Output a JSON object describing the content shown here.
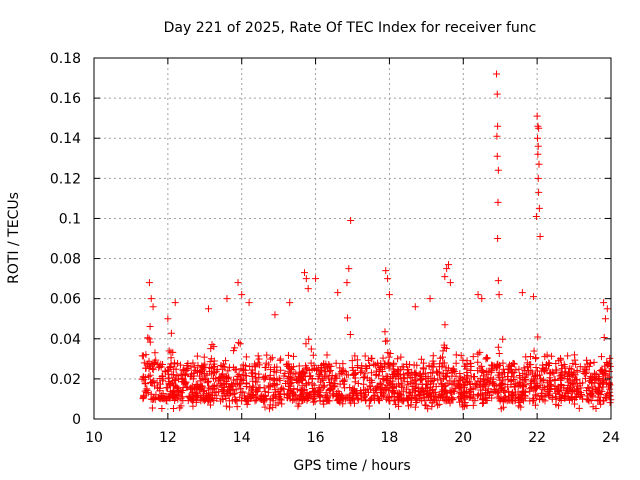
{
  "chart_data": {
    "type": "scatter",
    "title": "Day 221 of 2025, Rate Of TEC Index for receiver func",
    "xlabel": "GPS time / hours",
    "ylabel": "ROTI / TECUs",
    "xlim": [
      10,
      24
    ],
    "ylim": [
      0,
      0.18
    ],
    "x_ticks": [
      10,
      12,
      14,
      16,
      18,
      20,
      22,
      24
    ],
    "x_tick_labels": [
      "10",
      "12",
      "14",
      "16",
      "18",
      "20",
      "22",
      "24"
    ],
    "y_ticks": [
      0,
      0.02,
      0.04,
      0.06,
      0.08,
      0.1,
      0.12,
      0.14,
      0.16,
      0.18
    ],
    "y_tick_labels": [
      "0",
      "0.02",
      "0.04",
      "0.06",
      "0.08",
      "0.1",
      "0.12",
      "0.14",
      "0.16",
      "0.18"
    ],
    "grid": true,
    "marker": "+",
    "color": "#ff0000",
    "series": [
      {
        "name": "ROTI",
        "dense_band": {
          "x_start": 11.3,
          "x_end": 24.0,
          "y_min": 0.005,
          "y_typical_max": 0.04,
          "y_median": 0.016
        },
        "points": [
          {
            "x": 11.5,
            "y": 0.068
          },
          {
            "x": 11.55,
            "y": 0.06
          },
          {
            "x": 11.6,
            "y": 0.056
          },
          {
            "x": 12.0,
            "y": 0.05
          },
          {
            "x": 12.2,
            "y": 0.058
          },
          {
            "x": 13.1,
            "y": 0.055
          },
          {
            "x": 13.6,
            "y": 0.06
          },
          {
            "x": 13.9,
            "y": 0.068
          },
          {
            "x": 14.0,
            "y": 0.062
          },
          {
            "x": 14.2,
            "y": 0.058
          },
          {
            "x": 14.9,
            "y": 0.052
          },
          {
            "x": 15.3,
            "y": 0.058
          },
          {
            "x": 15.7,
            "y": 0.073
          },
          {
            "x": 15.75,
            "y": 0.07
          },
          {
            "x": 15.8,
            "y": 0.065
          },
          {
            "x": 16.0,
            "y": 0.07
          },
          {
            "x": 16.6,
            "y": 0.063
          },
          {
            "x": 16.9,
            "y": 0.075
          },
          {
            "x": 16.95,
            "y": 0.099
          },
          {
            "x": 16.85,
            "y": 0.068
          },
          {
            "x": 17.9,
            "y": 0.074
          },
          {
            "x": 17.95,
            "y": 0.07
          },
          {
            "x": 18.0,
            "y": 0.062
          },
          {
            "x": 18.7,
            "y": 0.056
          },
          {
            "x": 19.1,
            "y": 0.06
          },
          {
            "x": 19.5,
            "y": 0.071
          },
          {
            "x": 19.55,
            "y": 0.075
          },
          {
            "x": 19.6,
            "y": 0.077
          },
          {
            "x": 19.65,
            "y": 0.068
          },
          {
            "x": 20.4,
            "y": 0.062
          },
          {
            "x": 20.5,
            "y": 0.06
          },
          {
            "x": 20.9,
            "y": 0.172
          },
          {
            "x": 20.92,
            "y": 0.162
          },
          {
            "x": 20.93,
            "y": 0.146
          },
          {
            "x": 20.91,
            "y": 0.141
          },
          {
            "x": 20.92,
            "y": 0.131
          },
          {
            "x": 20.95,
            "y": 0.124
          },
          {
            "x": 20.94,
            "y": 0.108
          },
          {
            "x": 20.93,
            "y": 0.09
          },
          {
            "x": 20.95,
            "y": 0.069
          },
          {
            "x": 20.97,
            "y": 0.062
          },
          {
            "x": 21.6,
            "y": 0.063
          },
          {
            "x": 21.9,
            "y": 0.061
          },
          {
            "x": 22.0,
            "y": 0.151
          },
          {
            "x": 22.02,
            "y": 0.146
          },
          {
            "x": 22.04,
            "y": 0.145
          },
          {
            "x": 22.01,
            "y": 0.14
          },
          {
            "x": 22.03,
            "y": 0.136
          },
          {
            "x": 22.02,
            "y": 0.132
          },
          {
            "x": 22.05,
            "y": 0.127
          },
          {
            "x": 22.03,
            "y": 0.12
          },
          {
            "x": 22.04,
            "y": 0.113
          },
          {
            "x": 22.06,
            "y": 0.105
          },
          {
            "x": 21.98,
            "y": 0.101
          },
          {
            "x": 22.08,
            "y": 0.091
          },
          {
            "x": 23.8,
            "y": 0.058
          },
          {
            "x": 23.9,
            "y": 0.055
          },
          {
            "x": 23.85,
            "y": 0.05
          }
        ]
      }
    ]
  }
}
